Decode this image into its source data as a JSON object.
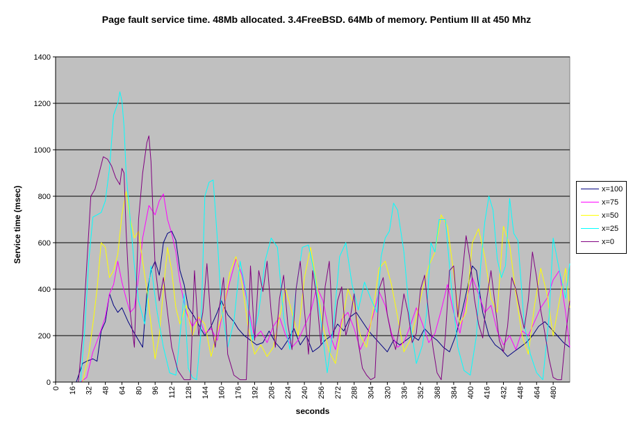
{
  "chart_data": {
    "type": "line",
    "title": "Page fault service time. 48Mb allocated. 3.4FreeBSD. 64Mb of memory. Pentium III at 450 Mhz",
    "xlabel": "seconds",
    "ylabel": "Service time (msec)",
    "xlim": [
      0,
      496
    ],
    "ylim": [
      0,
      1400
    ],
    "yticks": [
      0,
      200,
      400,
      600,
      800,
      1000,
      1200,
      1400
    ],
    "xticks": [
      0,
      16,
      32,
      48,
      64,
      80,
      96,
      112,
      128,
      144,
      160,
      176,
      192,
      208,
      224,
      240,
      256,
      272,
      288,
      304,
      320,
      336,
      352,
      368,
      384,
      400,
      416,
      432,
      448,
      464,
      480
    ],
    "grid": "horizontal",
    "plot_background": "#c0c0c0",
    "legend_position": "right",
    "series": [
      {
        "name": "x=100",
        "color": "#000080",
        "x": [
          0,
          20,
          26,
          30,
          36,
          40,
          44,
          48,
          52,
          56,
          60,
          64,
          70,
          76,
          80,
          84,
          88,
          92,
          96,
          100,
          104,
          108,
          112,
          116,
          120,
          124,
          128,
          134,
          140,
          144,
          150,
          156,
          160,
          166,
          172,
          176,
          182,
          188,
          194,
          200,
          206,
          212,
          218,
          224,
          230,
          236,
          242,
          248,
          254,
          260,
          266,
          272,
          278,
          284,
          290,
          296,
          302,
          308,
          314,
          320,
          326,
          332,
          338,
          344,
          350,
          356,
          362,
          368,
          374,
          380,
          386,
          392,
          398,
          402,
          406,
          412,
          418,
          424,
          430,
          436,
          442,
          448,
          454,
          460,
          466,
          472,
          478,
          484,
          490,
          496
        ],
        "values": [
          0,
          0,
          80,
          90,
          100,
          90,
          220,
          260,
          380,
          330,
          300,
          320,
          260,
          210,
          180,
          150,
          380,
          480,
          520,
          460,
          600,
          640,
          650,
          610,
          480,
          420,
          320,
          280,
          230,
          200,
          240,
          300,
          350,
          290,
          260,
          230,
          200,
          180,
          160,
          170,
          220,
          170,
          140,
          180,
          230,
          160,
          200,
          130,
          150,
          180,
          200,
          250,
          220,
          280,
          300,
          260,
          220,
          190,
          160,
          130,
          180,
          160,
          180,
          200,
          180,
          230,
          200,
          180,
          150,
          130,
          200,
          300,
          420,
          500,
          480,
          300,
          200,
          160,
          140,
          110,
          130,
          150,
          170,
          200,
          240,
          260,
          230,
          200,
          170,
          150
        ]
      },
      {
        "name": "x=75",
        "color": "#ff00ff",
        "x": [
          0,
          24,
          30,
          36,
          42,
          48,
          52,
          56,
          60,
          64,
          68,
          72,
          76,
          80,
          84,
          90,
          96,
          100,
          104,
          108,
          112,
          116,
          120,
          126,
          132,
          138,
          144,
          150,
          156,
          162,
          168,
          174,
          180,
          186,
          192,
          198,
          204,
          210,
          216,
          222,
          228,
          234,
          240,
          246,
          252,
          258,
          264,
          270,
          276,
          282,
          288,
          294,
          300,
          306,
          312,
          318,
          324,
          330,
          336,
          342,
          348,
          354,
          360,
          366,
          372,
          378,
          384,
          390,
          396,
          402,
          408,
          414,
          420,
          426,
          432,
          438,
          444,
          450,
          456,
          462,
          468,
          474,
          480,
          486,
          492,
          496
        ],
        "values": [
          0,
          0,
          20,
          130,
          200,
          280,
          380,
          420,
          520,
          430,
          360,
          300,
          320,
          450,
          620,
          760,
          720,
          780,
          810,
          700,
          640,
          560,
          430,
          300,
          240,
          280,
          210,
          230,
          180,
          320,
          430,
          530,
          460,
          320,
          190,
          220,
          170,
          240,
          280,
          200,
          150,
          180,
          240,
          300,
          410,
          350,
          210,
          140,
          270,
          300,
          230,
          140,
          200,
          280,
          390,
          330,
          210,
          150,
          170,
          240,
          320,
          250,
          170,
          210,
          310,
          420,
          300,
          210,
          350,
          450,
          380,
          300,
          330,
          220,
          160,
          200,
          140,
          220,
          200,
          260,
          320,
          360,
          440,
          480,
          300,
          150
        ]
      },
      {
        "name": "x=50",
        "color": "#ffff00",
        "x": [
          0,
          26,
          32,
          36,
          40,
          44,
          48,
          52,
          56,
          60,
          64,
          68,
          72,
          76,
          80,
          84,
          88,
          92,
          96,
          100,
          104,
          108,
          112,
          116,
          120,
          126,
          132,
          138,
          144,
          150,
          156,
          162,
          168,
          174,
          180,
          186,
          192,
          198,
          204,
          210,
          216,
          222,
          228,
          234,
          240,
          246,
          252,
          258,
          264,
          270,
          276,
          282,
          288,
          294,
          300,
          306,
          312,
          318,
          324,
          330,
          336,
          342,
          348,
          354,
          360,
          366,
          372,
          378,
          384,
          390,
          396,
          402,
          408,
          414,
          420,
          426,
          432,
          438,
          444,
          450,
          456,
          462,
          468,
          474,
          480,
          486,
          492,
          496
        ],
        "values": [
          0,
          0,
          120,
          250,
          400,
          600,
          580,
          450,
          480,
          550,
          720,
          820,
          700,
          620,
          650,
          520,
          400,
          250,
          100,
          200,
          400,
          580,
          480,
          320,
          250,
          330,
          200,
          280,
          250,
          110,
          220,
          310,
          470,
          540,
          420,
          230,
          120,
          160,
          110,
          150,
          280,
          400,
          300,
          200,
          450,
          580,
          420,
          240,
          130,
          80,
          250,
          400,
          330,
          200,
          150,
          300,
          490,
          520,
          420,
          280,
          130,
          180,
          280,
          400,
          500,
          560,
          720,
          670,
          470,
          250,
          300,
          600,
          660,
          540,
          360,
          300,
          670,
          590,
          380,
          200,
          120,
          330,
          490,
          380,
          200,
          350,
          490,
          320
        ]
      },
      {
        "name": "x=25",
        "color": "#00ffff",
        "x": [
          0,
          24,
          28,
          32,
          36,
          40,
          44,
          48,
          52,
          56,
          60,
          62,
          64,
          66,
          68,
          72,
          76,
          80,
          86,
          92,
          98,
          104,
          110,
          116,
          120,
          124,
          128,
          132,
          136,
          140,
          144,
          148,
          152,
          156,
          160,
          166,
          172,
          178,
          184,
          190,
          196,
          202,
          208,
          214,
          220,
          226,
          232,
          238,
          244,
          250,
          256,
          262,
          268,
          274,
          280,
          286,
          292,
          298,
          304,
          310,
          314,
          318,
          322,
          326,
          330,
          336,
          342,
          348,
          354,
          358,
          362,
          366,
          370,
          376,
          382,
          388,
          394,
          400,
          406,
          410,
          414,
          418,
          422,
          426,
          430,
          434,
          438,
          442,
          446,
          452,
          458,
          464,
          470,
          476,
          480,
          486,
          492,
          496
        ],
        "values": [
          0,
          0,
          220,
          520,
          710,
          720,
          730,
          780,
          920,
          1150,
          1200,
          1250,
          1210,
          1100,
          900,
          700,
          500,
          350,
          250,
          500,
          300,
          150,
          40,
          30,
          200,
          380,
          60,
          20,
          10,
          200,
          800,
          860,
          870,
          620,
          320,
          150,
          260,
          520,
          380,
          180,
          300,
          520,
          620,
          580,
          280,
          140,
          400,
          580,
          590,
          460,
          260,
          40,
          240,
          540,
          600,
          420,
          310,
          430,
          360,
          300,
          540,
          620,
          650,
          770,
          740,
          560,
          260,
          80,
          160,
          300,
          600,
          560,
          700,
          700,
          400,
          150,
          50,
          30,
          200,
          500,
          690,
          800,
          740,
          530,
          450,
          500,
          790,
          640,
          610,
          250,
          120,
          40,
          10,
          280,
          620,
          480,
          360,
          510
        ]
      },
      {
        "name": "x=0",
        "color": "#800080",
        "x": [
          0,
          22,
          26,
          30,
          34,
          38,
          42,
          46,
          50,
          54,
          58,
          62,
          64,
          66,
          68,
          72,
          76,
          80,
          84,
          88,
          90,
          92,
          96,
          100,
          104,
          108,
          112,
          118,
          124,
          130,
          134,
          138,
          142,
          146,
          150,
          154,
          158,
          162,
          166,
          172,
          178,
          184,
          188,
          192,
          196,
          200,
          204,
          208,
          212,
          216,
          220,
          224,
          228,
          232,
          236,
          240,
          244,
          248,
          252,
          256,
          260,
          264,
          268,
          272,
          276,
          280,
          284,
          288,
          292,
          296,
          300,
          304,
          308,
          312,
          316,
          320,
          324,
          328,
          332,
          336,
          340,
          344,
          348,
          352,
          356,
          360,
          364,
          368,
          372,
          376,
          380,
          384,
          388,
          392,
          396,
          400,
          404,
          408,
          412,
          416,
          420,
          424,
          428,
          432,
          436,
          440,
          444,
          448,
          452,
          456,
          460,
          464,
          468,
          472,
          476,
          480,
          484,
          488,
          492,
          496
        ],
        "values": [
          0,
          0,
          200,
          500,
          800,
          830,
          900,
          970,
          960,
          930,
          880,
          850,
          920,
          900,
          650,
          300,
          150,
          700,
          900,
          1030,
          1060,
          950,
          500,
          350,
          450,
          300,
          150,
          50,
          10,
          10,
          480,
          200,
          300,
          510,
          250,
          150,
          320,
          450,
          120,
          30,
          10,
          10,
          500,
          180,
          480,
          390,
          520,
          300,
          150,
          360,
          460,
          250,
          140,
          400,
          520,
          310,
          120,
          480,
          360,
          160,
          410,
          520,
          190,
          350,
          410,
          200,
          270,
          380,
          170,
          60,
          30,
          10,
          20,
          400,
          450,
          290,
          200,
          140,
          250,
          380,
          300,
          170,
          210,
          400,
          460,
          290,
          150,
          40,
          10,
          200,
          480,
          500,
          280,
          450,
          630,
          520,
          360,
          250,
          190,
          360,
          480,
          330,
          180,
          130,
          240,
          450,
          400,
          310,
          230,
          350,
          560,
          450,
          310,
          210,
          100,
          20,
          10,
          10,
          200,
          350
        ]
      }
    ]
  }
}
